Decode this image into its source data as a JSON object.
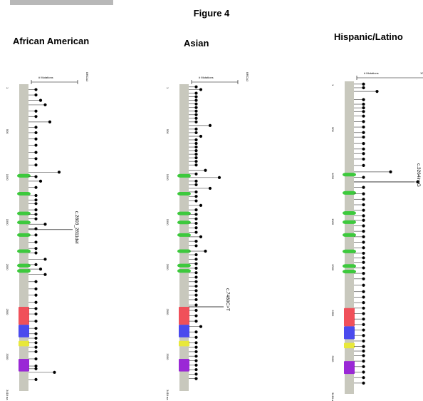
{
  "page": {
    "figure_title": "Figure 4"
  },
  "chart_data": [
    {
      "type": "lollipop",
      "title": "African American",
      "xlabel": "# Mutations",
      "gene_label": "BRCA2",
      "aa_axis_ticks": [
        "1",
        "500",
        "1000",
        "1500",
        "2000",
        "2500",
        "3000",
        "3418 aa"
      ],
      "mutations": [
        {
          "pos": 60,
          "count": 1
        },
        {
          "pos": 120,
          "count": 1
        },
        {
          "pos": 180,
          "count": 2
        },
        {
          "pos": 230,
          "count": 3
        },
        {
          "pos": 300,
          "count": 1
        },
        {
          "pos": 360,
          "count": 1
        },
        {
          "pos": 420,
          "count": 4
        },
        {
          "pos": 480,
          "count": 1
        },
        {
          "pos": 540,
          "count": 1
        },
        {
          "pos": 610,
          "count": 1
        },
        {
          "pos": 680,
          "count": 1
        },
        {
          "pos": 760,
          "count": 1
        },
        {
          "pos": 830,
          "count": 1
        },
        {
          "pos": 900,
          "count": 1
        },
        {
          "pos": 980,
          "count": 6
        },
        {
          "pos": 1030,
          "count": 1
        },
        {
          "pos": 1080,
          "count": 2
        },
        {
          "pos": 1150,
          "count": 1
        },
        {
          "pos": 1240,
          "count": 1
        },
        {
          "pos": 1290,
          "count": 1
        },
        {
          "pos": 1330,
          "count": 1
        },
        {
          "pos": 1400,
          "count": 1
        },
        {
          "pos": 1450,
          "count": 1
        },
        {
          "pos": 1500,
          "count": 1
        },
        {
          "pos": 1560,
          "count": 3
        },
        {
          "pos": 1610,
          "count": 1
        },
        {
          "pos": 1680,
          "count": 1
        },
        {
          "pos": 1760,
          "count": 1
        },
        {
          "pos": 1830,
          "count": 1
        },
        {
          "pos": 1880,
          "count": 1
        },
        {
          "pos": 1950,
          "count": 3
        },
        {
          "pos": 2010,
          "count": 1
        },
        {
          "pos": 2060,
          "count": 2
        },
        {
          "pos": 2120,
          "count": 3
        },
        {
          "pos": 2200,
          "count": 1
        },
        {
          "pos": 2280,
          "count": 1
        },
        {
          "pos": 2350,
          "count": 1
        },
        {
          "pos": 2430,
          "count": 1
        },
        {
          "pos": 2500,
          "count": 1
        },
        {
          "pos": 2560,
          "count": 1
        },
        {
          "pos": 2640,
          "count": 1
        },
        {
          "pos": 2720,
          "count": 1
        },
        {
          "pos": 2780,
          "count": 1
        },
        {
          "pos": 2830,
          "count": 1
        },
        {
          "pos": 2880,
          "count": 1
        },
        {
          "pos": 2930,
          "count": 1
        },
        {
          "pos": 2980,
          "count": 1
        },
        {
          "pos": 3060,
          "count": 1
        },
        {
          "pos": 3140,
          "count": 1
        },
        {
          "pos": 3170,
          "count": 1
        },
        {
          "pos": 3210,
          "count": 5
        },
        {
          "pos": 3290,
          "count": 1
        }
      ],
      "callouts": [
        {
          "text": "c.2803_2811del",
          "pos": 1620
        }
      ]
    },
    {
      "type": "lollipop",
      "title": "Asian",
      "xlabel": "# Mutations",
      "gene_label": "BRCA2",
      "aa_axis_ticks": [
        "1",
        "500",
        "1000",
        "1500",
        "2000",
        "2500",
        "3000",
        "3418 aa"
      ],
      "mutations": [
        {
          "pos": 30,
          "count": 1
        },
        {
          "pos": 60,
          "count": 2
        },
        {
          "pos": 100,
          "count": 1
        },
        {
          "pos": 140,
          "count": 1
        },
        {
          "pos": 180,
          "count": 1
        },
        {
          "pos": 220,
          "count": 1
        },
        {
          "pos": 260,
          "count": 1
        },
        {
          "pos": 300,
          "count": 1
        },
        {
          "pos": 340,
          "count": 1
        },
        {
          "pos": 380,
          "count": 1
        },
        {
          "pos": 420,
          "count": 1
        },
        {
          "pos": 460,
          "count": 4
        },
        {
          "pos": 500,
          "count": 1
        },
        {
          "pos": 540,
          "count": 1
        },
        {
          "pos": 580,
          "count": 2
        },
        {
          "pos": 620,
          "count": 1
        },
        {
          "pos": 660,
          "count": 1
        },
        {
          "pos": 700,
          "count": 1
        },
        {
          "pos": 740,
          "count": 1
        },
        {
          "pos": 780,
          "count": 1
        },
        {
          "pos": 820,
          "count": 1
        },
        {
          "pos": 860,
          "count": 1
        },
        {
          "pos": 900,
          "count": 1
        },
        {
          "pos": 960,
          "count": 3
        },
        {
          "pos": 1000,
          "count": 1
        },
        {
          "pos": 1040,
          "count": 6
        },
        {
          "pos": 1080,
          "count": 1
        },
        {
          "pos": 1120,
          "count": 1
        },
        {
          "pos": 1160,
          "count": 4
        },
        {
          "pos": 1200,
          "count": 1
        },
        {
          "pos": 1250,
          "count": 1
        },
        {
          "pos": 1300,
          "count": 1
        },
        {
          "pos": 1350,
          "count": 2
        },
        {
          "pos": 1400,
          "count": 1
        },
        {
          "pos": 1450,
          "count": 1
        },
        {
          "pos": 1500,
          "count": 1
        },
        {
          "pos": 1550,
          "count": 1
        },
        {
          "pos": 1600,
          "count": 1
        },
        {
          "pos": 1650,
          "count": 1
        },
        {
          "pos": 1700,
          "count": 2
        },
        {
          "pos": 1750,
          "count": 1
        },
        {
          "pos": 1800,
          "count": 1
        },
        {
          "pos": 1860,
          "count": 3
        },
        {
          "pos": 1900,
          "count": 1
        },
        {
          "pos": 1950,
          "count": 1
        },
        {
          "pos": 2000,
          "count": 1
        },
        {
          "pos": 2050,
          "count": 1
        },
        {
          "pos": 2100,
          "count": 1
        },
        {
          "pos": 2150,
          "count": 1
        },
        {
          "pos": 2200,
          "count": 1
        },
        {
          "pos": 2250,
          "count": 1
        },
        {
          "pos": 2300,
          "count": 1
        },
        {
          "pos": 2350,
          "count": 1
        },
        {
          "pos": 2400,
          "count": 1
        },
        {
          "pos": 2460,
          "count": 1
        },
        {
          "pos": 2520,
          "count": 1
        },
        {
          "pos": 2580,
          "count": 1
        },
        {
          "pos": 2640,
          "count": 1
        },
        {
          "pos": 2700,
          "count": 2
        },
        {
          "pos": 2760,
          "count": 1
        },
        {
          "pos": 2820,
          "count": 1
        },
        {
          "pos": 2880,
          "count": 1
        },
        {
          "pos": 2930,
          "count": 1
        },
        {
          "pos": 2980,
          "count": 1
        },
        {
          "pos": 3030,
          "count": 1
        },
        {
          "pos": 3080,
          "count": 1
        },
        {
          "pos": 3130,
          "count": 1
        },
        {
          "pos": 3180,
          "count": 1
        },
        {
          "pos": 3230,
          "count": 1
        },
        {
          "pos": 3280,
          "count": 1
        }
      ],
      "callouts": [
        {
          "text": "c.7480C>T",
          "pos": 2480
        }
      ]
    },
    {
      "type": "lollipop",
      "title": "Hispanic/Latino",
      "xlabel": "# Mutations",
      "gene_label": "BRCA2",
      "axis_max_label": "10",
      "aa_axis_ticks": [
        "1",
        "500",
        "1000",
        "1500",
        "2000",
        "2500",
        "3000",
        "3418 aa"
      ],
      "mutations": [
        {
          "pos": 30,
          "count": 1
        },
        {
          "pos": 70,
          "count": 1
        },
        {
          "pos": 110,
          "count": 3
        },
        {
          "pos": 200,
          "count": 1
        },
        {
          "pos": 250,
          "count": 1
        },
        {
          "pos": 290,
          "count": 1
        },
        {
          "pos": 330,
          "count": 1
        },
        {
          "pos": 380,
          "count": 1
        },
        {
          "pos": 440,
          "count": 1
        },
        {
          "pos": 500,
          "count": 1
        },
        {
          "pos": 560,
          "count": 1
        },
        {
          "pos": 610,
          "count": 1
        },
        {
          "pos": 680,
          "count": 1
        },
        {
          "pos": 740,
          "count": 1
        },
        {
          "pos": 790,
          "count": 1
        },
        {
          "pos": 850,
          "count": 1
        },
        {
          "pos": 920,
          "count": 1
        },
        {
          "pos": 990,
          "count": 5
        },
        {
          "pos": 1050,
          "count": 1
        },
        {
          "pos": 1100,
          "count": 9
        },
        {
          "pos": 1160,
          "count": 1
        },
        {
          "pos": 1230,
          "count": 1
        },
        {
          "pos": 1290,
          "count": 1
        },
        {
          "pos": 1350,
          "count": 1
        },
        {
          "pos": 1410,
          "count": 1
        },
        {
          "pos": 1470,
          "count": 1
        },
        {
          "pos": 1520,
          "count": 1
        },
        {
          "pos": 1580,
          "count": 1
        },
        {
          "pos": 1640,
          "count": 1
        },
        {
          "pos": 1700,
          "count": 1
        },
        {
          "pos": 1760,
          "count": 1
        },
        {
          "pos": 1820,
          "count": 1
        },
        {
          "pos": 1880,
          "count": 1
        },
        {
          "pos": 1930,
          "count": 1
        },
        {
          "pos": 1980,
          "count": 1
        },
        {
          "pos": 2040,
          "count": 1
        },
        {
          "pos": 2100,
          "count": 1
        },
        {
          "pos": 2160,
          "count": 1
        },
        {
          "pos": 2230,
          "count": 1
        },
        {
          "pos": 2300,
          "count": 1
        },
        {
          "pos": 2360,
          "count": 1
        },
        {
          "pos": 2420,
          "count": 1
        },
        {
          "pos": 2480,
          "count": 1
        },
        {
          "pos": 2540,
          "count": 1
        },
        {
          "pos": 2600,
          "count": 1
        },
        {
          "pos": 2660,
          "count": 1
        },
        {
          "pos": 2720,
          "count": 1
        },
        {
          "pos": 2780,
          "count": 1
        },
        {
          "pos": 2840,
          "count": 1
        },
        {
          "pos": 2900,
          "count": 1
        },
        {
          "pos": 2950,
          "count": 1
        },
        {
          "pos": 3000,
          "count": 1
        },
        {
          "pos": 3060,
          "count": 1
        },
        {
          "pos": 3120,
          "count": 1
        },
        {
          "pos": 3180,
          "count": 1
        },
        {
          "pos": 3240,
          "count": 1
        },
        {
          "pos": 3300,
          "count": 1
        }
      ],
      "callouts": [
        {
          "text": "c.3264insG",
          "pos": 1100
        }
      ]
    }
  ]
}
